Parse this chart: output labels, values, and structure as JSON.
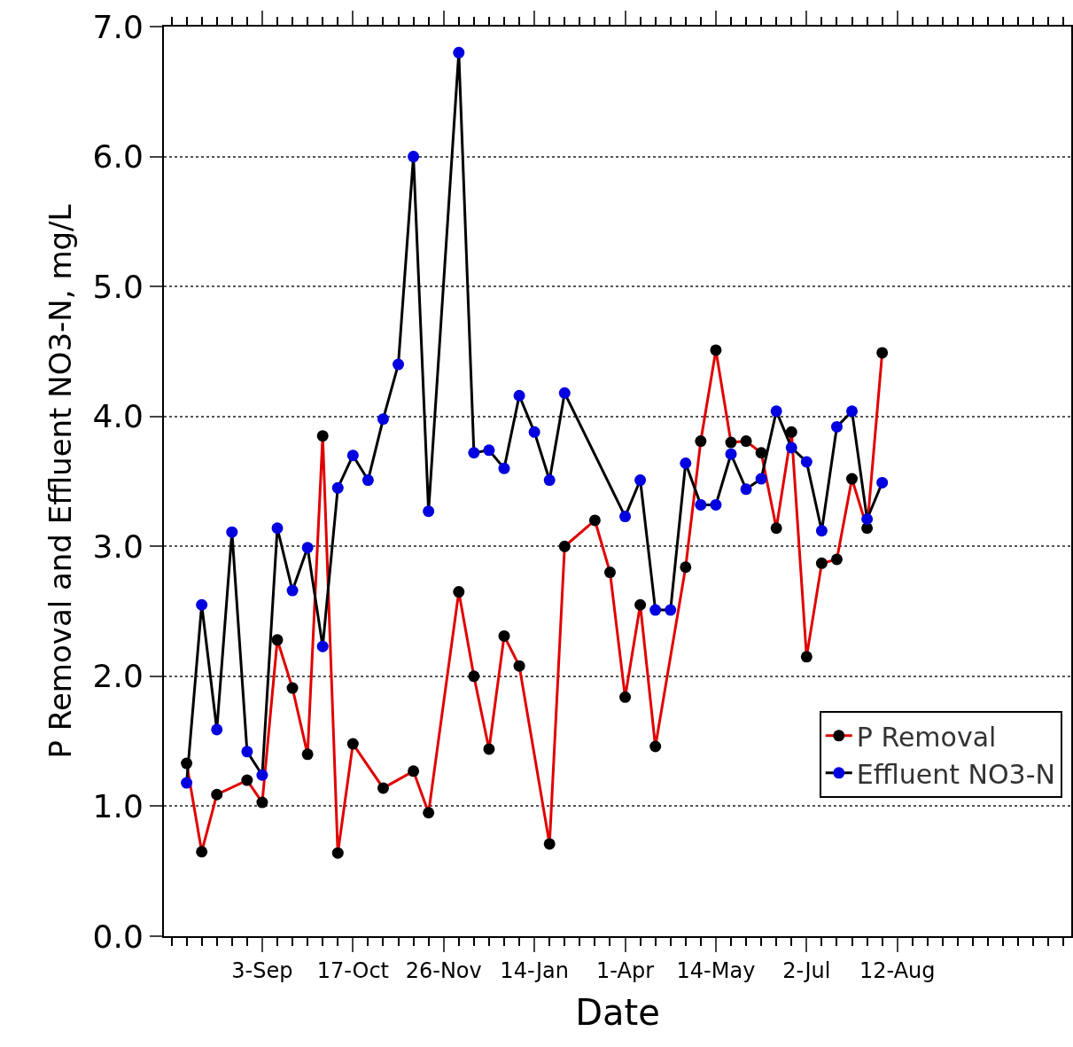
{
  "chart_data": {
    "type": "line",
    "xlabel": "Date",
    "ylabel": "P Removal and Effluent NO3-N, mg/L",
    "categories": [
      null,
      null,
      null,
      null,
      null,
      null,
      "3-Sep",
      null,
      null,
      null,
      null,
      null,
      "17-Oct",
      null,
      null,
      null,
      null,
      null,
      "26-Nov",
      null,
      null,
      null,
      null,
      null,
      "14-Jan",
      null,
      null,
      null,
      null,
      null,
      "1-Apr",
      null,
      null,
      null,
      null,
      null,
      "14-May",
      null,
      null,
      null,
      null,
      null,
      "2-Jul",
      null,
      null,
      null,
      null,
      null,
      "12-Aug",
      null,
      null,
      null,
      null,
      null,
      null,
      null,
      null,
      null,
      null,
      null
    ],
    "ylim": [
      0,
      7
    ],
    "yticks": [
      {
        "value": 0,
        "label": "0.0"
      },
      {
        "value": 1,
        "label": "1.0"
      },
      {
        "value": 2,
        "label": "2.0"
      },
      {
        "value": 3,
        "label": "3.0"
      },
      {
        "value": 4,
        "label": "4.0"
      },
      {
        "value": 5,
        "label": "5.0"
      },
      {
        "value": 6,
        "label": "6.0"
      },
      {
        "value": 7,
        "label": "7.0"
      }
    ],
    "grid": "y",
    "legend": "right",
    "marker": "circle",
    "line_style": "solid",
    "series": [
      {
        "name": "P Removal",
        "color": "#e00000",
        "colors": [
          "#000000",
          "#000000",
          "#000000",
          "#000000",
          "#000000",
          "#000000",
          "#000000",
          "#000000",
          "#000000",
          "#000000",
          "#000000",
          "#000000",
          "#000000",
          "#000000",
          "#000000",
          "#000000",
          "#000000",
          "#000000",
          "#000000",
          "#000000",
          "#000000",
          "#000000",
          "#000000",
          "#000000",
          "#000000",
          "#000000",
          "#000000",
          "#000000",
          "#000000",
          "#000000",
          "#000000",
          "#000000",
          "#000000",
          "#000000",
          "#000000",
          "#000000",
          "#000000",
          "#000000",
          "#000000",
          "#000000",
          "#000000",
          "#000000",
          "#000000",
          "#000000",
          "#000000",
          "#000000",
          "#000000",
          "#000000",
          "#000000",
          "#000000",
          "#000000",
          "#000000",
          "#000000",
          "#000000",
          "#000000",
          "#000000",
          "#000000",
          "#000000",
          "#000000",
          "#000000"
        ],
        "values": [
          null,
          1.33,
          0.65,
          1.09,
          null,
          1.2,
          1.03,
          2.28,
          1.91,
          1.4,
          3.85,
          0.64,
          1.48,
          null,
          1.14,
          null,
          1.27,
          0.95,
          null,
          2.65,
          2.0,
          1.44,
          2.31,
          2.08,
          null,
          0.71,
          3.0,
          null,
          3.2,
          2.8,
          1.84,
          2.55,
          1.46,
          null,
          2.84,
          3.81,
          4.51,
          3.8,
          3.81,
          3.72,
          3.14,
          3.88,
          2.15,
          2.87,
          2.9,
          3.52,
          3.14,
          4.49,
          null,
          null,
          null,
          null,
          null,
          null,
          null,
          null,
          null,
          null,
          null,
          null
        ]
      },
      {
        "name": "Effluent NO3-N",
        "color": "#000000",
        "colors": [
          "#0000e0",
          "#0000e0",
          "#0000e0",
          "#0000e0",
          "#0000e0",
          "#0000e0",
          "#0000e0",
          "#0000e0",
          "#0000e0",
          "#0000e0",
          "#0000e0",
          "#0000e0",
          "#0000e0",
          "#0000e0",
          "#0000e0",
          "#0000e0",
          "#0000e0",
          "#0000e0",
          "#0000e0",
          "#0000e0",
          "#0000e0",
          "#0000e0",
          "#0000e0",
          "#0000e0",
          "#0000e0",
          "#0000e0",
          "#0000e0",
          "#0000e0",
          "#0000e0",
          "#0000e0",
          "#0000e0",
          "#0000e0",
          "#0000e0",
          "#0000e0",
          "#0000e0",
          "#0000e0",
          "#0000e0",
          "#0000e0",
          "#0000e0",
          "#0000e0",
          "#0000e0",
          "#0000e0",
          "#0000e0",
          "#0000e0",
          "#0000e0",
          "#0000e0",
          "#0000e0",
          "#0000e0",
          "#0000e0",
          "#0000e0",
          "#0000e0",
          "#0000e0",
          "#0000e0",
          "#0000e0",
          "#0000e0",
          "#0000e0",
          "#0000e0",
          "#0000e0",
          "#0000e0",
          "#0000e0"
        ],
        "values": [
          null,
          1.18,
          2.55,
          1.59,
          3.11,
          1.42,
          1.24,
          3.14,
          2.66,
          2.99,
          2.23,
          3.45,
          3.7,
          3.51,
          3.98,
          4.4,
          6.0,
          3.27,
          null,
          6.8,
          3.72,
          3.74,
          3.6,
          4.16,
          3.88,
          3.51,
          4.18,
          null,
          null,
          null,
          3.23,
          3.51,
          2.51,
          2.51,
          3.64,
          3.32,
          3.32,
          3.71,
          3.44,
          3.52,
          4.04,
          3.76,
          3.65,
          3.12,
          3.92,
          4.04,
          3.21,
          3.49,
          null,
          null,
          null,
          null,
          null,
          null,
          null,
          null,
          null,
          null,
          null,
          null
        ]
      }
    ]
  }
}
